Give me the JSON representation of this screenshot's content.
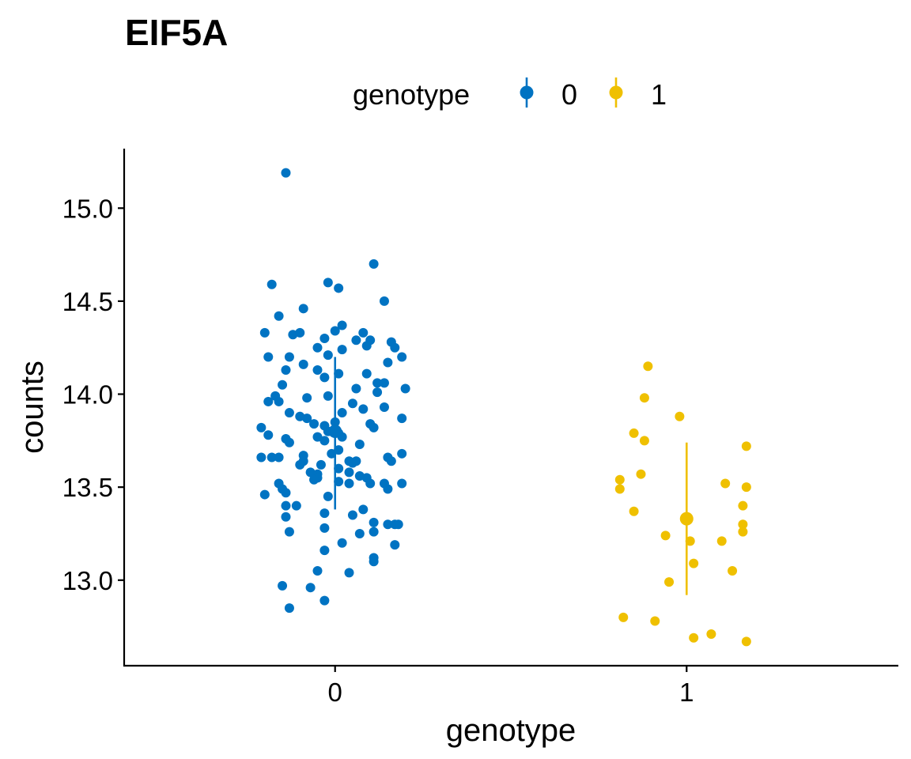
{
  "chart_data": {
    "type": "scatter",
    "title": "EIF5A",
    "xlabel": "genotype",
    "ylabel": "counts",
    "categories": [
      "0",
      "1"
    ],
    "xlim": [
      -0.6,
      1.6
    ],
    "ylim": [
      12.54,
      15.32
    ],
    "y_ticks": [
      "13.0",
      "13.5",
      "14.0",
      "14.5",
      "15.0"
    ],
    "legend": {
      "title": "genotype",
      "position": "top",
      "entries": [
        "0",
        "1"
      ]
    },
    "grid": false,
    "series": [
      {
        "name": "0",
        "color": "#0073C2",
        "summary": {
          "mean": 13.8,
          "lower": 13.38,
          "upper": 14.2
        },
        "points": [
          [
            -0.14,
            15.19
          ],
          [
            0.11,
            14.7
          ],
          [
            -0.18,
            14.59
          ],
          [
            -0.02,
            14.6
          ],
          [
            0.01,
            14.57
          ],
          [
            0.14,
            14.5
          ],
          [
            -0.09,
            14.46
          ],
          [
            -0.16,
            14.42
          ],
          [
            0.02,
            14.37
          ],
          [
            -0.2,
            14.33
          ],
          [
            -0.12,
            14.32
          ],
          [
            -0.1,
            14.33
          ],
          [
            0,
            14.34
          ],
          [
            0.08,
            14.33
          ],
          [
            0.06,
            14.29
          ],
          [
            -0.03,
            14.3
          ],
          [
            0.1,
            14.29
          ],
          [
            0.16,
            14.28
          ],
          [
            0.17,
            14.25
          ],
          [
            0.09,
            14.26
          ],
          [
            -0.05,
            14.25
          ],
          [
            0.02,
            14.24
          ],
          [
            -0.19,
            14.2
          ],
          [
            -0.13,
            14.2
          ],
          [
            0.19,
            14.2
          ],
          [
            -0.02,
            14.21
          ],
          [
            0.15,
            14.17
          ],
          [
            -0.09,
            14.16
          ],
          [
            -0.14,
            14.13
          ],
          [
            -0.05,
            14.13
          ],
          [
            0.01,
            14.11
          ],
          [
            0.09,
            14.11
          ],
          [
            -0.03,
            14.09
          ],
          [
            0.12,
            14.06
          ],
          [
            0.14,
            14.06
          ],
          [
            -0.15,
            14.05
          ],
          [
            0.06,
            14.03
          ],
          [
            0.2,
            14.03
          ],
          [
            0.12,
            14.01
          ],
          [
            -0.02,
            13.99
          ],
          [
            -0.08,
            13.98
          ],
          [
            -0.17,
            13.99
          ],
          [
            -0.19,
            13.96
          ],
          [
            -0.16,
            13.96
          ],
          [
            0.05,
            13.95
          ],
          [
            0.02,
            13.9
          ],
          [
            0.08,
            13.92
          ],
          [
            0.14,
            13.93
          ],
          [
            -0.13,
            13.9
          ],
          [
            -0.1,
            13.88
          ],
          [
            -0.08,
            13.87
          ],
          [
            0.19,
            13.87
          ],
          [
            0.1,
            13.84
          ],
          [
            -0.06,
            13.84
          ],
          [
            -0.03,
            13.83
          ],
          [
            0,
            13.85
          ],
          [
            -0.21,
            13.82
          ],
          [
            0.11,
            13.82
          ],
          [
            0,
            13.8
          ],
          [
            -0.02,
            13.8
          ],
          [
            0.01,
            13.79
          ],
          [
            -0.05,
            13.77
          ],
          [
            -0.14,
            13.76
          ],
          [
            -0.19,
            13.78
          ],
          [
            0.02,
            13.77
          ],
          [
            -0.03,
            13.75
          ],
          [
            0.07,
            13.73
          ],
          [
            -0.13,
            13.74
          ],
          [
            0.01,
            13.7
          ],
          [
            -0.01,
            13.68
          ],
          [
            -0.09,
            13.67
          ],
          [
            0.19,
            13.68
          ],
          [
            0.15,
            13.66
          ],
          [
            -0.21,
            13.66
          ],
          [
            -0.18,
            13.66
          ],
          [
            -0.16,
            13.66
          ],
          [
            0.16,
            13.64
          ],
          [
            -0.09,
            13.64
          ],
          [
            0.04,
            13.64
          ],
          [
            0.06,
            13.64
          ],
          [
            0.05,
            13.63
          ],
          [
            -0.04,
            13.62
          ],
          [
            -0.1,
            13.62
          ],
          [
            0.01,
            13.6
          ],
          [
            0.04,
            13.58
          ],
          [
            -0.07,
            13.58
          ],
          [
            -0.05,
            13.57
          ],
          [
            0.07,
            13.56
          ],
          [
            0.09,
            13.55
          ],
          [
            -0.05,
            13.55
          ],
          [
            -0.06,
            13.54
          ],
          [
            0.01,
            13.53
          ],
          [
            0.04,
            13.52
          ],
          [
            0.1,
            13.52
          ],
          [
            0.14,
            13.52
          ],
          [
            0.19,
            13.52
          ],
          [
            -0.16,
            13.52
          ],
          [
            -0.15,
            13.49
          ],
          [
            0.15,
            13.49
          ],
          [
            -0.14,
            13.47
          ],
          [
            -0.2,
            13.46
          ],
          [
            -0.02,
            13.45
          ],
          [
            -0.14,
            13.4
          ],
          [
            -0.11,
            13.4
          ],
          [
            0.08,
            13.38
          ],
          [
            -0.03,
            13.36
          ],
          [
            0.05,
            13.35
          ],
          [
            -0.14,
            13.34
          ],
          [
            0.11,
            13.31
          ],
          [
            0.15,
            13.3
          ],
          [
            0.17,
            13.3
          ],
          [
            0.18,
            13.3
          ],
          [
            -0.03,
            13.28
          ],
          [
            -0.13,
            13.26
          ],
          [
            0.07,
            13.25
          ],
          [
            0.11,
            13.26
          ],
          [
            0.17,
            13.19
          ],
          [
            -0.03,
            13.16
          ],
          [
            0.02,
            13.2
          ],
          [
            0.11,
            13.12
          ],
          [
            0.11,
            13.1
          ],
          [
            -0.05,
            13.05
          ],
          [
            0.04,
            13.04
          ],
          [
            -0.15,
            12.97
          ],
          [
            -0.07,
            12.96
          ],
          [
            -0.03,
            12.89
          ],
          [
            -0.13,
            12.85
          ]
        ]
      },
      {
        "name": "1",
        "color": "#EFC000",
        "summary": {
          "mean": 13.33,
          "lower": 12.92,
          "upper": 13.74
        },
        "points": [
          [
            0.89,
            14.15
          ],
          [
            0.88,
            13.98
          ],
          [
            0.98,
            13.88
          ],
          [
            0.85,
            13.79
          ],
          [
            0.88,
            13.75
          ],
          [
            1.17,
            13.72
          ],
          [
            0.87,
            13.57
          ],
          [
            0.81,
            13.54
          ],
          [
            1.11,
            13.52
          ],
          [
            1.17,
            13.5
          ],
          [
            0.81,
            13.49
          ],
          [
            1.16,
            13.4
          ],
          [
            0.85,
            13.37
          ],
          [
            1.16,
            13.3
          ],
          [
            1.16,
            13.26
          ],
          [
            0.94,
            13.24
          ],
          [
            1.1,
            13.21
          ],
          [
            1.01,
            13.21
          ],
          [
            1.02,
            13.09
          ],
          [
            1.13,
            13.05
          ],
          [
            0.95,
            12.99
          ],
          [
            0.82,
            12.8
          ],
          [
            0.91,
            12.78
          ],
          [
            1.07,
            12.71
          ],
          [
            1.02,
            12.69
          ],
          [
            1.17,
            12.67
          ]
        ]
      }
    ]
  }
}
